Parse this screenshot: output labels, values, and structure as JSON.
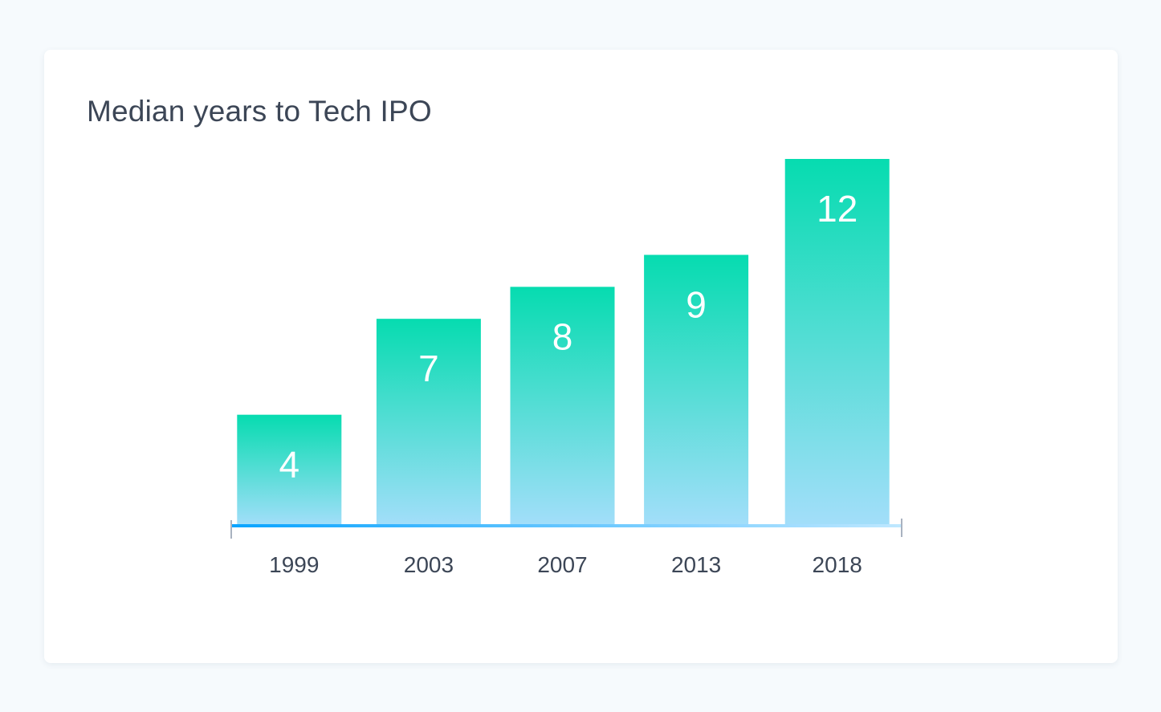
{
  "chart_data": {
    "type": "bar",
    "title": "Median years to Tech IPO",
    "categories": [
      "1999",
      "2003",
      "2007",
      "2013",
      "2018"
    ],
    "values": [
      4,
      7,
      8,
      9,
      12
    ],
    "xlabel": "",
    "ylabel": "",
    "ylim": [
      0,
      12
    ],
    "grid": false,
    "legend": "none",
    "colors": {
      "bar_top": "#06dcb0",
      "bar_bottom": "#a3defa",
      "axis_start": "#0aa4ff",
      "axis_end": "#bfe8ff",
      "label": "#3c4656",
      "value_label": "#ffffff"
    }
  }
}
